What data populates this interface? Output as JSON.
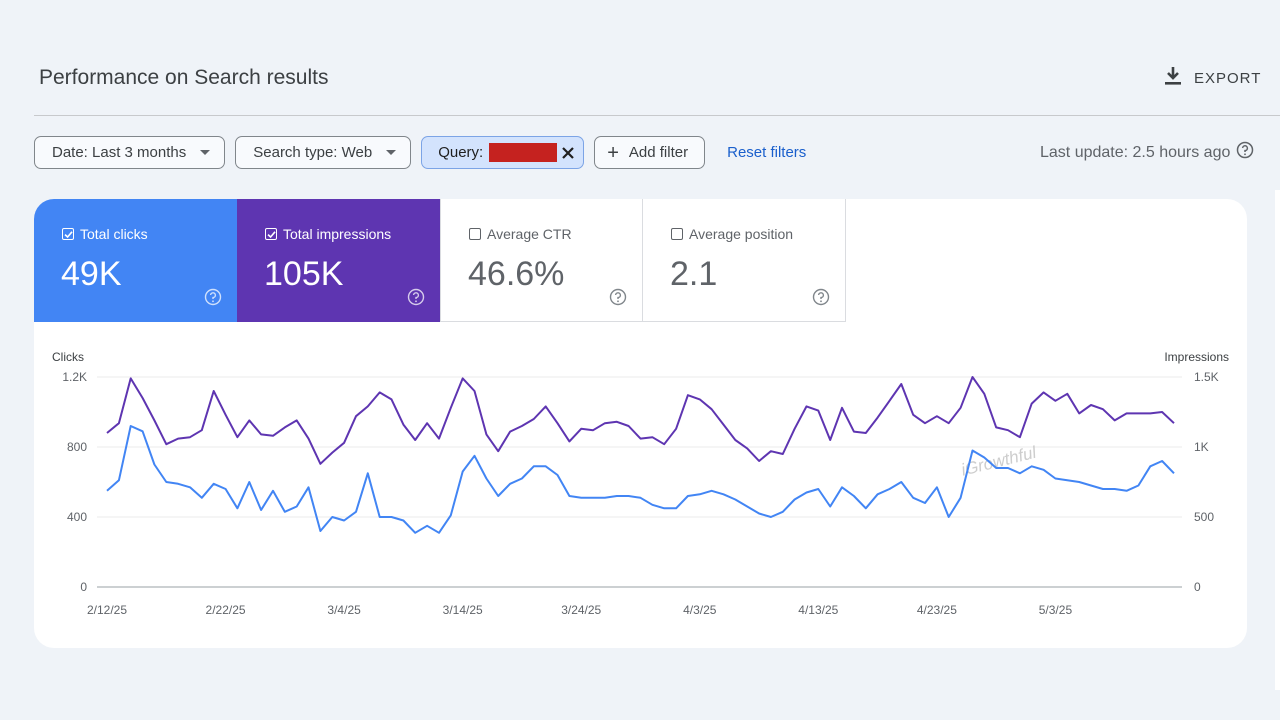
{
  "header": {
    "title": "Performance on Search results",
    "export_label": "EXPORT"
  },
  "filters": {
    "date": "Date: Last 3 months",
    "search_type": "Search type: Web",
    "query_label": "Query:",
    "add_filter": "Add filter",
    "reset": "Reset filters",
    "last_update": "Last update: 2.5 hours ago"
  },
  "metrics": {
    "clicks": {
      "label": "Total clicks",
      "value": "49K",
      "checked": true
    },
    "impressions": {
      "label": "Total impressions",
      "value": "105K",
      "checked": true
    },
    "ctr": {
      "label": "Average CTR",
      "value": "46.6%",
      "checked": false
    },
    "position": {
      "label": "Average position",
      "value": "2.1",
      "checked": false
    }
  },
  "watermark": "iGrowthful",
  "colors": {
    "clicks": "#4285f4",
    "impressions": "#5e35b1",
    "link": "#1a5fcc",
    "redaction": "#c5221f"
  },
  "chart_data": {
    "type": "line",
    "left_axis_label": "Clicks",
    "right_axis_label": "Impressions",
    "left_ticks": [
      "0",
      "400",
      "800",
      "1.2K"
    ],
    "right_ticks": [
      "0",
      "500",
      "1K",
      "1.5K"
    ],
    "ylim_left": [
      0,
      1200
    ],
    "ylim_right": [
      0,
      1500
    ],
    "x_ticks": [
      "2/12/25",
      "2/22/25",
      "3/4/25",
      "3/14/25",
      "3/24/25",
      "4/3/25",
      "4/13/25",
      "4/23/25",
      "5/3/25"
    ],
    "start_date": "2025-02-12",
    "series": [
      {
        "name": "Clicks",
        "axis": "left",
        "color": "#4285f4",
        "values": [
          550,
          610,
          920,
          890,
          700,
          600,
          590,
          570,
          510,
          590,
          560,
          450,
          600,
          440,
          550,
          430,
          460,
          570,
          320,
          400,
          380,
          430,
          650,
          400,
          400,
          380,
          310,
          350,
          310,
          410,
          660,
          750,
          620,
          520,
          590,
          620,
          690,
          690,
          640,
          520,
          510,
          510,
          510,
          520,
          520,
          510,
          470,
          450,
          450,
          520,
          530,
          550,
          530,
          500,
          460,
          420,
          400,
          430,
          500,
          540,
          560,
          460,
          570,
          520,
          450,
          530,
          560,
          600,
          510,
          480,
          570,
          400,
          510,
          780,
          740,
          680,
          680,
          650,
          690,
          670,
          620,
          610,
          600,
          580,
          560,
          560,
          550,
          580,
          690,
          720,
          650
        ]
      },
      {
        "name": "Impressions",
        "axis": "right",
        "color": "#5e35b1",
        "values": [
          1100,
          1170,
          1490,
          1350,
          1190,
          1020,
          1060,
          1070,
          1120,
          1400,
          1230,
          1070,
          1190,
          1090,
          1080,
          1140,
          1190,
          1060,
          880,
          960,
          1030,
          1220,
          1290,
          1390,
          1340,
          1160,
          1050,
          1170,
          1060,
          1280,
          1490,
          1400,
          1090,
          970,
          1110,
          1150,
          1200,
          1290,
          1170,
          1040,
          1130,
          1120,
          1170,
          1180,
          1150,
          1060,
          1070,
          1020,
          1130,
          1370,
          1340,
          1270,
          1160,
          1050,
          990,
          900,
          970,
          950,
          1130,
          1290,
          1260,
          1050,
          1280,
          1110,
          1100,
          1210,
          1330,
          1450,
          1230,
          1170,
          1220,
          1170,
          1280,
          1500,
          1380,
          1140,
          1120,
          1070,
          1310,
          1390,
          1330,
          1380,
          1240,
          1300,
          1270,
          1190,
          1240,
          1240,
          1240,
          1250,
          1170
        ]
      }
    ]
  }
}
